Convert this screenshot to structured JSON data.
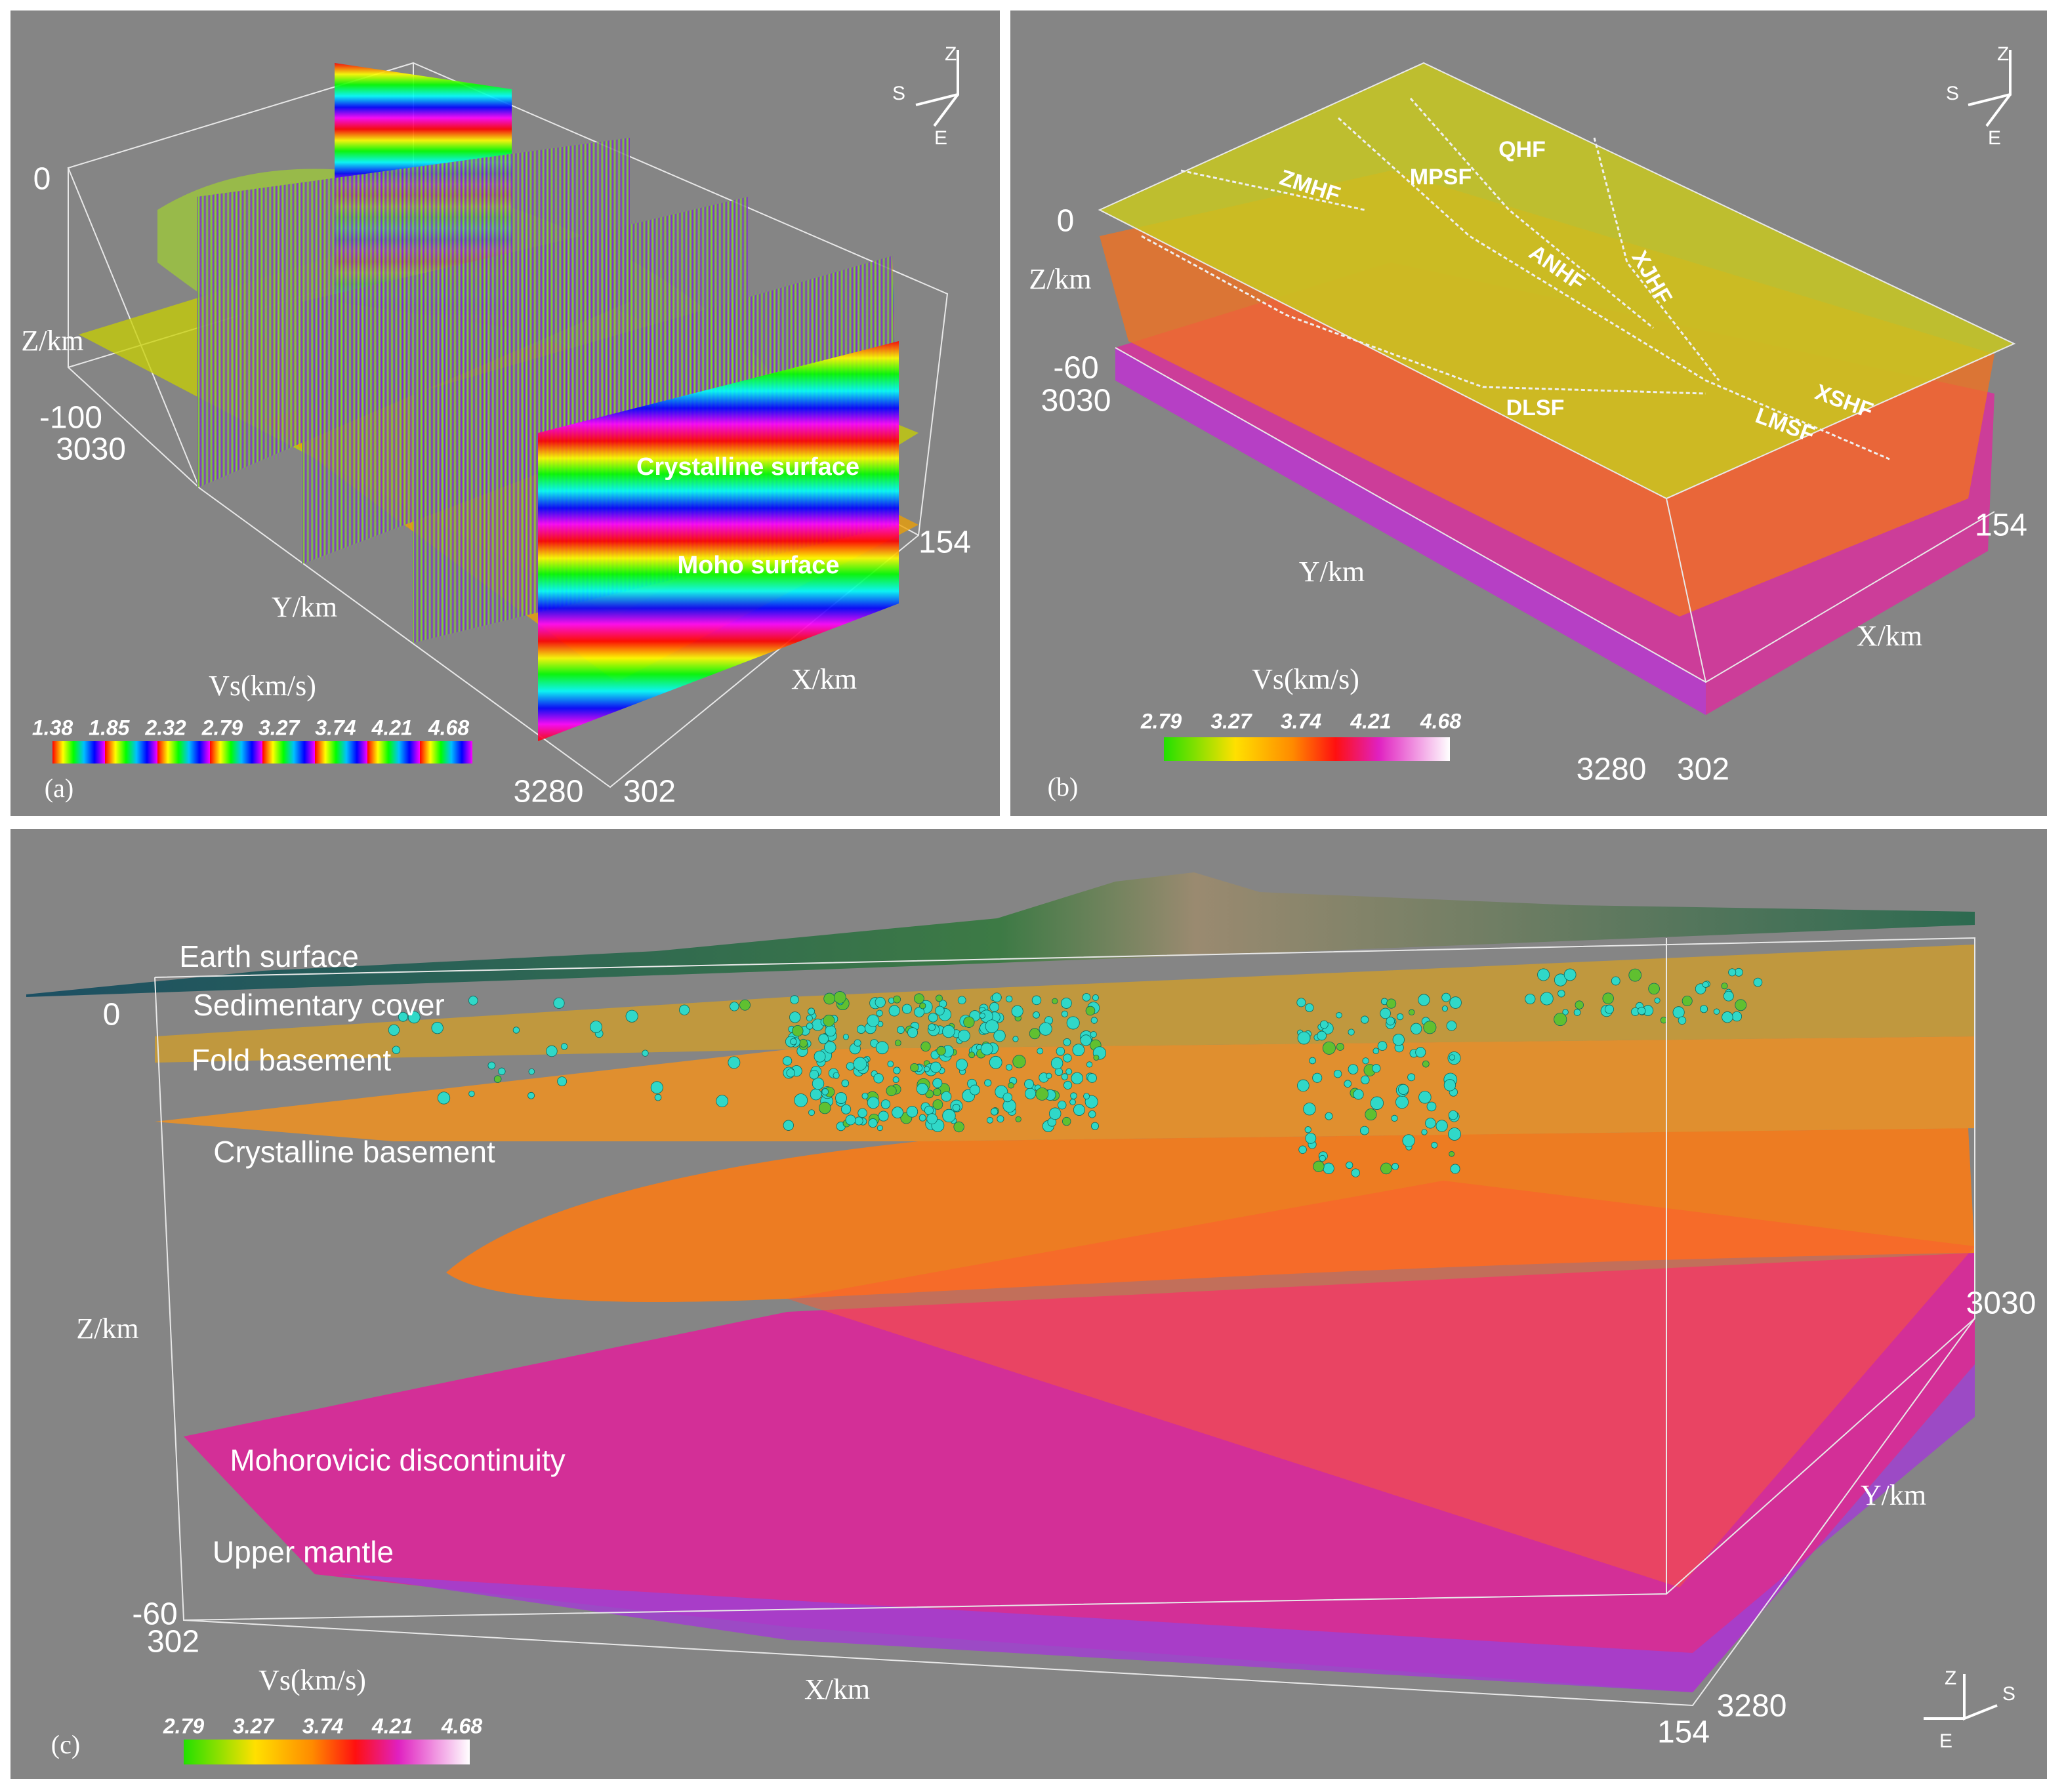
{
  "panels": [
    {
      "label": "(a)",
      "axes": {
        "z_label": "Z/km",
        "y_label": "Y/km",
        "x_label": "X/km",
        "z_top": "0",
        "z_bottom": "-100",
        "y_start": "3030",
        "y_end": "3280",
        "x_start": "302",
        "x_end": "154"
      },
      "annotations": [
        "Crystalline surface",
        "Moho surface"
      ],
      "compass": [
        "Z",
        "S",
        "E"
      ],
      "colorbar": {
        "title": "Vs(km/s)",
        "ticks": [
          "1.38",
          "1.85",
          "2.32",
          "2.79",
          "3.27",
          "3.74",
          "4.21",
          "4.68"
        ]
      }
    },
    {
      "label": "(b)",
      "axes": {
        "z_label": "Z/km",
        "y_label": "Y/km",
        "x_label": "X/km",
        "z_top": "0",
        "z_bottom": "-60",
        "y_start": "3030",
        "y_end": "3280",
        "x_start": "302",
        "x_end": "154"
      },
      "faults": [
        "ZMHF",
        "MPSF",
        "QHF",
        "ANHF",
        "XJHF",
        "DLSF",
        "XSHF",
        "LMSF"
      ],
      "compass": [
        "Z",
        "S",
        "E"
      ],
      "colorbar": {
        "title": "Vs(km/s)",
        "ticks": [
          "2.79",
          "3.27",
          "3.74",
          "4.21",
          "4.68"
        ]
      }
    },
    {
      "label": "(c)",
      "axes": {
        "z_label": "Z/km",
        "y_label": "Y/km",
        "x_label": "X/km",
        "z_top": "0",
        "z_bottom": "-60",
        "y_start": "3030",
        "y_end": "3280",
        "x_start": "302",
        "x_end": "154"
      },
      "layers": [
        "Earth surface",
        "Sedimentary cover",
        "Fold basement",
        "Crystalline basement",
        "Mohorovicic discontinuity",
        "Upper mantle"
      ],
      "compass": [
        "Z",
        "S",
        "E"
      ],
      "colorbar": {
        "title": "Vs(km/s)",
        "ticks": [
          "2.79",
          "3.27",
          "3.74",
          "4.21",
          "4.68"
        ]
      }
    }
  ]
}
